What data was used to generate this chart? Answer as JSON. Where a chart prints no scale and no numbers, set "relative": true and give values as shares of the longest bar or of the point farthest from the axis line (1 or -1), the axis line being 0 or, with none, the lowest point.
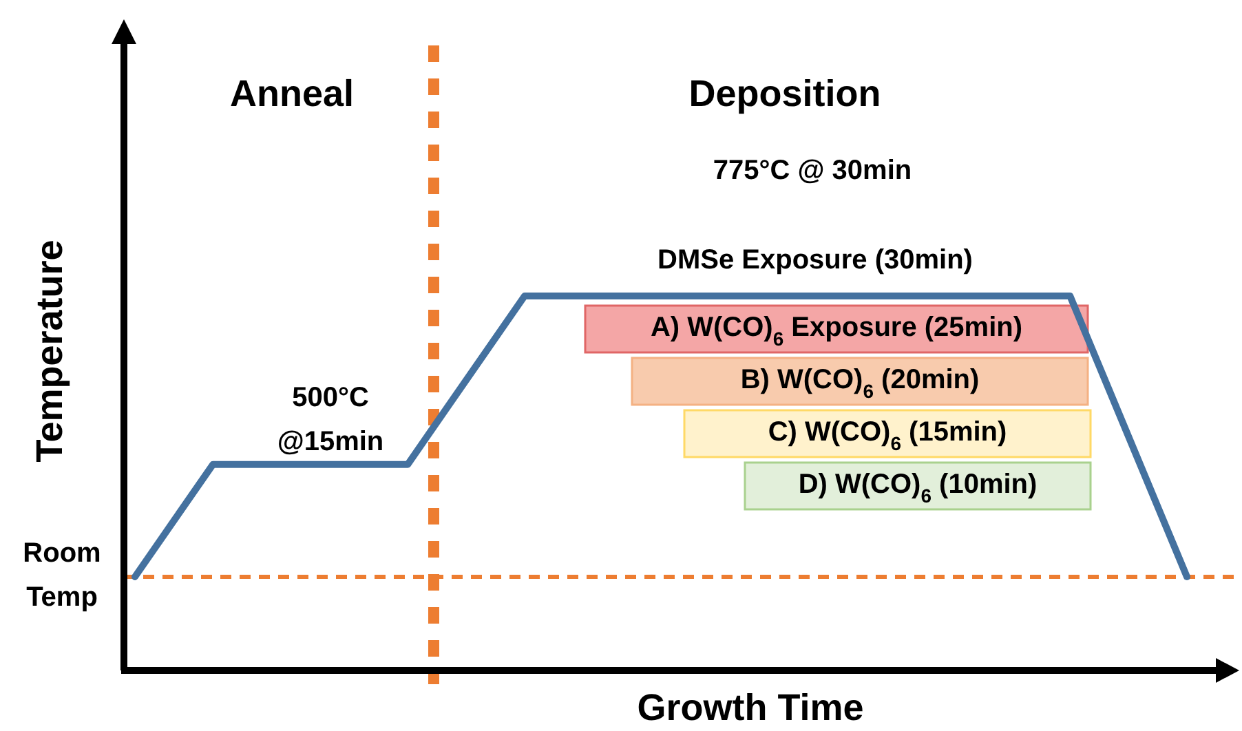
{
  "chart_data": {
    "type": "line",
    "relative": true,
    "xlabel": "Growth Time",
    "ylabel": "Temperature",
    "categories": [
      null,
      null,
      null,
      null,
      null,
      null,
      null,
      null,
      null,
      null,
      null,
      null,
      null,
      null,
      null,
      null,
      null,
      null,
      null,
      null,
      null,
      null,
      null,
      null,
      null,
      null,
      null,
      null
    ],
    "series": [
      {
        "color": "#44719f",
        "values": [
          0.25,
          0.4,
          0.55,
          0.55,
          0.55,
          0.55,
          0.55,
          0.55,
          0.7,
          0.85,
          1,
          1,
          1,
          1,
          1,
          1,
          1,
          1,
          1,
          1,
          1,
          1,
          1,
          1,
          1,
          0.75,
          0.5,
          0.25
        ]
      }
    ],
    "ref_lines": [
      {
        "axis": "y",
        "value": 0.25,
        "label": "Room\nTemp",
        "color": "#ed7d31",
        "line_style": "dashed"
      }
    ],
    "annotations": [
      "Anneal",
      "Deposition",
      "500°C\n@15min",
      "775°C @ 30min",
      "DMSe Exposure (30min)",
      "A) W(CO)$_{6}$ Exposure (25min)",
      "B) W(CO)$_{6}$ (20min)",
      "C) W(CO)$_{6}$ (15min)",
      "D) W(CO)$_{6}$ (10min)"
    ]
  }
}
